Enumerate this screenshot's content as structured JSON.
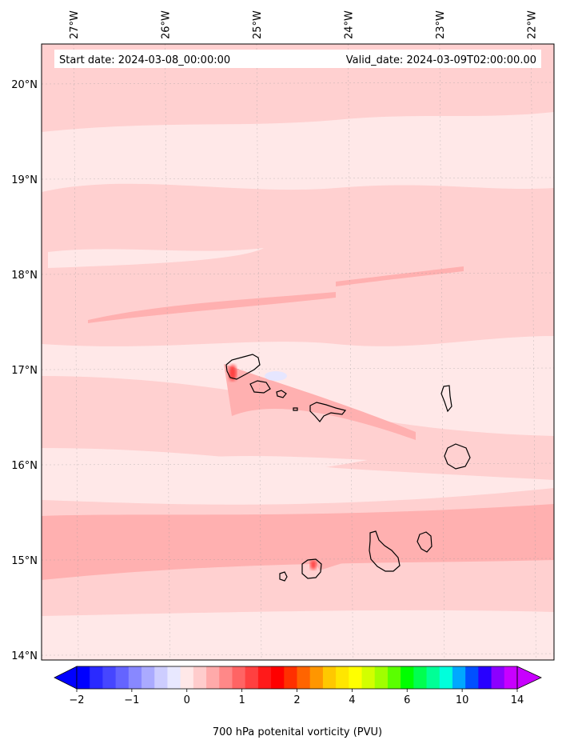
{
  "map": {
    "start_label": "Start date: 2024-03-08_00:00:00",
    "valid_label": "Valid_date: 2024-03-09T02:00:00.00",
    "lon_labels": [
      "27°W",
      "26°W",
      "25°W",
      "24°W",
      "23°W",
      "22°W"
    ],
    "lat_labels": [
      "20°N",
      "19°N",
      "18°N",
      "17°N",
      "16°N",
      "15°N",
      "14°N"
    ],
    "lon_values": [
      -27,
      -26,
      -25,
      -24,
      -23,
      -22
    ],
    "lat_values": [
      20,
      19,
      18,
      17,
      16,
      15,
      14
    ],
    "extent": {
      "lon_min": -27.35,
      "lon_max": -21.75,
      "lat_min": 13.95,
      "lat_max": 20.42
    },
    "gridlines": true,
    "field_colors": {
      "light": "#ffe8e8",
      "medium": "#ffd0d0",
      "strong": "#ffb0b0",
      "neg": "#e6e6ff",
      "coast": "#000000"
    }
  },
  "colorbar": {
    "label": "700 hPa potenital vorticity (PVU)",
    "colors": [
      "#0000ff",
      "#2a2aff",
      "#4646ff",
      "#6464ff",
      "#8888ff",
      "#aaaaff",
      "#cdcdff",
      "#e8e8ff",
      "#ffe8e8",
      "#ffcccc",
      "#ffaaaa",
      "#ff8888",
      "#ff6464",
      "#ff4040",
      "#ff1a1a",
      "#ff0000",
      "#ff3000",
      "#ff6400",
      "#ff9600",
      "#ffc800",
      "#ffe600",
      "#ffff00",
      "#d2ff00",
      "#a0ff00",
      "#5aff00",
      "#00ff00",
      "#00ff50",
      "#00ff96",
      "#00ffdc",
      "#00a8ff",
      "#0050ff",
      "#2800ff",
      "#8c00ff",
      "#c800ff"
    ],
    "tick_labels": [
      "−2",
      "−1",
      "0",
      "1",
      "2",
      "4",
      "6",
      "10",
      "14"
    ],
    "tick_boundaries": [
      0,
      4,
      8,
      12,
      16,
      20,
      24,
      28,
      32
    ],
    "extend": "both"
  }
}
